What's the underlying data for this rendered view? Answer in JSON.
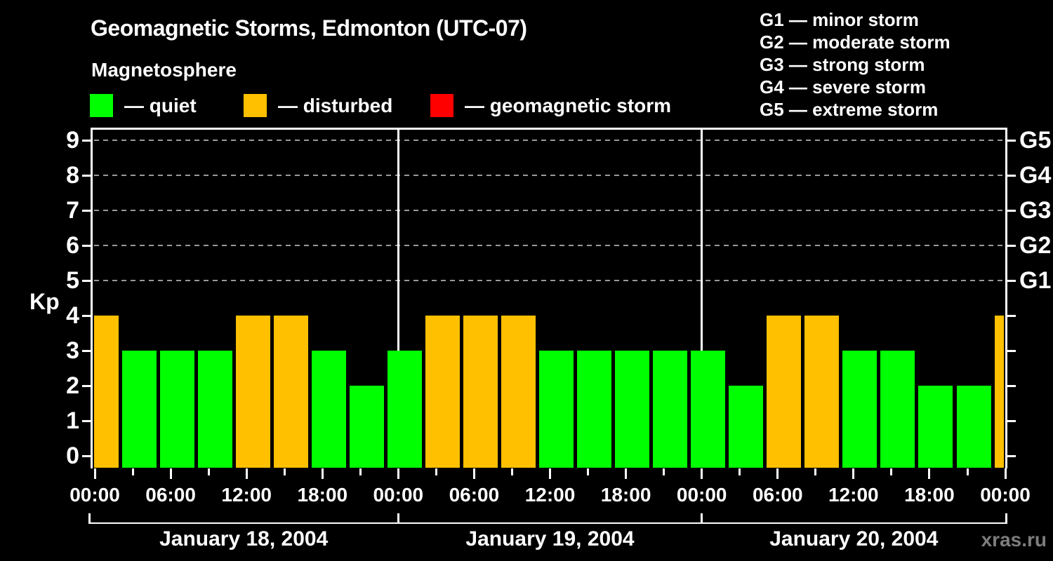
{
  "header": {
    "title": "Geomagnetic Storms, Edmonton (UTC-07)",
    "subtitle": "Magnetosphere"
  },
  "legend": {
    "items": [
      {
        "label": "— quiet",
        "state": "quiet",
        "color": "#00ff00"
      },
      {
        "label": "— disturbed",
        "state": "disturbed",
        "color": "#ffc000"
      },
      {
        "label": "— geomagnetic storm",
        "state": "storm",
        "color": "#ff0000"
      }
    ]
  },
  "g_scale_legend": {
    "lines": [
      "G1 — minor storm",
      "G2 — moderate storm",
      "G3 — strong storm",
      "G4 — severe storm",
      "G5 — extreme storm"
    ]
  },
  "watermark": "xras.ru",
  "chart_data": {
    "type": "bar",
    "title": "Geomagnetic Storms, Edmonton (UTC-07)",
    "ylabel": "Kp",
    "ylim": [
      0,
      9.6
    ],
    "y_ticks": [
      0,
      1,
      2,
      3,
      4,
      5,
      6,
      7,
      8,
      9
    ],
    "grid_levels": [
      5,
      6,
      7,
      8,
      9
    ],
    "grid": "dashed horizontal at G-storm levels only",
    "legend_position": "top",
    "right_axis_labels": [
      {
        "label": "G1",
        "kp": 5
      },
      {
        "label": "G2",
        "kp": 6
      },
      {
        "label": "G3",
        "kp": 7
      },
      {
        "label": "G4",
        "kp": 8
      },
      {
        "label": "G5",
        "kp": 9
      }
    ],
    "x_tick_interval_hours": 3,
    "x_label_interval_hours": 6,
    "x_tick_labels": [
      "00:00",
      "06:00",
      "12:00",
      "18:00",
      "00:00",
      "06:00",
      "12:00",
      "18:00",
      "00:00",
      "06:00",
      "12:00",
      "18:00",
      "00:00"
    ],
    "days": [
      "January 18, 2004",
      "January 19, 2004",
      "January 20, 2004"
    ],
    "color_map": {
      "quiet": "#00ff00",
      "disturbed": "#ffc000",
      "storm": "#ff0000"
    },
    "points": [
      {
        "hour": 0,
        "time": "00:00",
        "kp": 4,
        "state": "disturbed"
      },
      {
        "hour": 3,
        "time": "03:00",
        "kp": 3,
        "state": "quiet"
      },
      {
        "hour": 6,
        "time": "06:00",
        "kp": 3,
        "state": "quiet"
      },
      {
        "hour": 9,
        "time": "09:00",
        "kp": 3,
        "state": "quiet"
      },
      {
        "hour": 12,
        "time": "12:00",
        "kp": 4,
        "state": "disturbed"
      },
      {
        "hour": 15,
        "time": "15:00",
        "kp": 4,
        "state": "disturbed"
      },
      {
        "hour": 18,
        "time": "18:00",
        "kp": 3,
        "state": "quiet"
      },
      {
        "hour": 21,
        "time": "21:00",
        "kp": 2,
        "state": "quiet"
      },
      {
        "hour": 24,
        "time": "00:00",
        "kp": 3,
        "state": "quiet"
      },
      {
        "hour": 27,
        "time": "03:00",
        "kp": 4,
        "state": "disturbed"
      },
      {
        "hour": 30,
        "time": "06:00",
        "kp": 4,
        "state": "disturbed"
      },
      {
        "hour": 33,
        "time": "09:00",
        "kp": 4,
        "state": "disturbed"
      },
      {
        "hour": 36,
        "time": "12:00",
        "kp": 3,
        "state": "quiet"
      },
      {
        "hour": 39,
        "time": "15:00",
        "kp": 3,
        "state": "quiet"
      },
      {
        "hour": 42,
        "time": "18:00",
        "kp": 3,
        "state": "quiet"
      },
      {
        "hour": 45,
        "time": "21:00",
        "kp": 3,
        "state": "quiet"
      },
      {
        "hour": 48,
        "time": "00:00",
        "kp": 3,
        "state": "quiet"
      },
      {
        "hour": 51,
        "time": "03:00",
        "kp": 2,
        "state": "quiet"
      },
      {
        "hour": 54,
        "time": "06:00",
        "kp": 4,
        "state": "disturbed"
      },
      {
        "hour": 57,
        "time": "09:00",
        "kp": 4,
        "state": "disturbed"
      },
      {
        "hour": 60,
        "time": "12:00",
        "kp": 3,
        "state": "quiet"
      },
      {
        "hour": 63,
        "time": "15:00",
        "kp": 3,
        "state": "quiet"
      },
      {
        "hour": 66,
        "time": "18:00",
        "kp": 2,
        "state": "quiet"
      },
      {
        "hour": 69,
        "time": "21:00",
        "kp": 2,
        "state": "quiet"
      },
      {
        "hour": 72,
        "time": "00:00",
        "kp": 4,
        "state": "disturbed"
      }
    ]
  }
}
